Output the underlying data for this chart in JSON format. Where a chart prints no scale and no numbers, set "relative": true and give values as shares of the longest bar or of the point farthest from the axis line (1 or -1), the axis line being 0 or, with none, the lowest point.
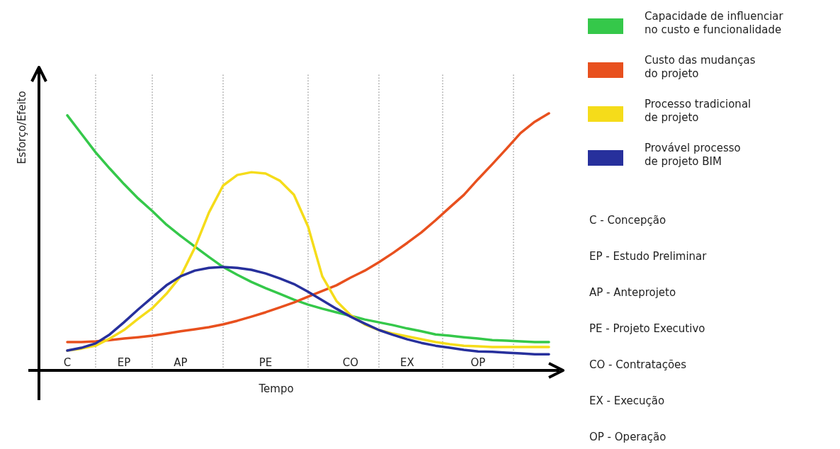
{
  "chart_data": {
    "type": "line",
    "relative": true,
    "xlabel": "Tempo",
    "ylabel": "Esforço/Efeito",
    "legend": "right",
    "grid": "x",
    "marker": "none",
    "line_style": "solid",
    "categories": [
      "C",
      null,
      null,
      null,
      "EP",
      null,
      null,
      null,
      "AP",
      null,
      null,
      null,
      null,
      null,
      "PE",
      null,
      null,
      null,
      null,
      null,
      "CO",
      null,
      null,
      null,
      "EX",
      null,
      null,
      null,
      null,
      "OP",
      null,
      null,
      null,
      null,
      null
    ],
    "series": [
      {
        "name": "Capacidade de influenciar no custo e funcionalidade",
        "color": "#35c84a",
        "values": [
          0.992,
          0.92,
          0.848,
          0.785,
          0.725,
          0.669,
          0.62,
          0.567,
          0.523,
          0.482,
          0.441,
          0.402,
          0.372,
          0.344,
          0.32,
          0.298,
          0.275,
          0.256,
          0.24,
          0.226,
          0.212,
          0.198,
          0.187,
          0.176,
          0.163,
          0.152,
          0.14,
          0.135,
          0.129,
          0.124,
          0.118,
          0.116,
          0.113,
          0.11,
          0.11
        ]
      },
      {
        "name": "Custo das mudanças do projeto",
        "color": "#e8501e",
        "values": [
          0.11,
          0.11,
          0.113,
          0.118,
          0.124,
          0.129,
          0.135,
          0.143,
          0.152,
          0.16,
          0.168,
          0.179,
          0.193,
          0.209,
          0.226,
          0.245,
          0.264,
          0.287,
          0.309,
          0.331,
          0.361,
          0.388,
          0.421,
          0.457,
          0.496,
          0.537,
          0.584,
          0.634,
          0.683,
          0.744,
          0.802,
          0.862,
          0.923,
          0.967,
          1.0
        ]
      },
      {
        "name": "Processo tradicional de projeto",
        "color": "#f5dc1a",
        "values": [
          0.077,
          0.085,
          0.096,
          0.124,
          0.157,
          0.201,
          0.242,
          0.298,
          0.366,
          0.477,
          0.614,
          0.719,
          0.76,
          0.771,
          0.766,
          0.738,
          0.683,
          0.559,
          0.366,
          0.27,
          0.215,
          0.179,
          0.157,
          0.143,
          0.132,
          0.121,
          0.11,
          0.102,
          0.096,
          0.094,
          0.091,
          0.091,
          0.091,
          0.091,
          0.091
        ]
      },
      {
        "name": "Provável processo de projeto BIM",
        "color": "#27309c",
        "values": [
          0.077,
          0.088,
          0.105,
          0.14,
          0.187,
          0.237,
          0.284,
          0.331,
          0.366,
          0.388,
          0.399,
          0.402,
          0.399,
          0.391,
          0.377,
          0.358,
          0.336,
          0.306,
          0.273,
          0.24,
          0.209,
          0.182,
          0.157,
          0.138,
          0.121,
          0.107,
          0.096,
          0.088,
          0.08,
          0.074,
          0.072,
          0.069,
          0.066,
          0.063,
          0.063
        ]
      }
    ],
    "annotations": [
      "C - Concepção",
      "EP - Estudo Preliminar",
      "AP - Anteprojeto",
      "PE - Projeto Executivo",
      "CO - Contratações",
      "EX - Execução",
      "OP - Operação"
    ]
  }
}
